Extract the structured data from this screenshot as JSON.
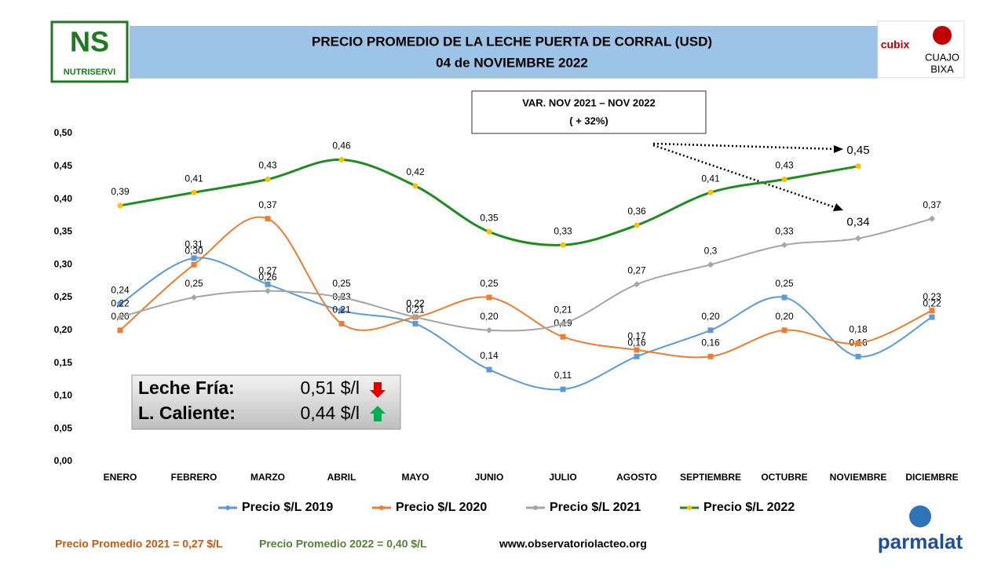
{
  "chart_data": {
    "type": "line",
    "title": "PRECIO PROMEDIO DE LA LECHE PUERTA DE CORRAL (USD)",
    "subtitle": "04 de NOVIEMBRE 2022",
    "categories": [
      "ENERO",
      "FEBRERO",
      "MARZO",
      "ABRIL",
      "MAYO",
      "JUNIO",
      "JULIO",
      "AGOSTO",
      "SEPTIEMBRE",
      "OCTUBRE",
      "NOVIEMBRE",
      "DICIEMBRE"
    ],
    "series": [
      {
        "name": "Precio $/L 2019",
        "color": "#5b9bd5",
        "values": [
          0.24,
          0.31,
          0.27,
          0.23,
          0.21,
          0.14,
          0.11,
          0.16,
          0.2,
          0.25,
          0.16,
          0.22
        ],
        "value_labels": [
          "0,24",
          "0,31",
          "0,27",
          "0,23",
          "0,21",
          "0,14",
          "0,11",
          "0,16",
          "0,20",
          "0,25",
          "0,16",
          "0,22"
        ]
      },
      {
        "name": "Precio $/L 2020",
        "color": "#ed7d31",
        "values": [
          0.2,
          0.3,
          0.37,
          0.21,
          0.22,
          0.25,
          0.19,
          0.17,
          0.16,
          0.2,
          0.18,
          0.23
        ],
        "value_labels": [
          "0,20",
          "0,30",
          "0,37",
          "0,21",
          "0,22",
          "0,25",
          "0,19",
          "0,17",
          "0,16",
          "0,20",
          "0,18",
          "0,23"
        ]
      },
      {
        "name": "Precio $/L 2021",
        "color": "#a5a5a5",
        "values": [
          0.22,
          0.25,
          0.26,
          0.25,
          0.22,
          0.2,
          0.21,
          0.27,
          0.3,
          0.33,
          0.34,
          0.37
        ],
        "value_labels": [
          "0,22",
          "0,25",
          "0,26",
          "0,25",
          "0,22",
          "0,20",
          "0,21",
          "0,27",
          "0,3",
          "0,33",
          "0,34",
          "0,37"
        ]
      },
      {
        "name": "Precio $/L 2022",
        "color": "#1e8c1e",
        "marker_color": "#ffc000",
        "values": [
          0.39,
          0.41,
          0.43,
          0.46,
          0.42,
          0.35,
          0.33,
          0.36,
          0.41,
          0.43,
          0.45,
          null
        ],
        "value_labels": [
          "0,39",
          "0,41",
          "0,43",
          "0,46",
          "0,42",
          "0,35",
          "0,33",
          "0,36",
          "0,41",
          "0,43",
          "0,45",
          null
        ]
      }
    ],
    "ylim": [
      0,
      0.5
    ],
    "yticks": [
      {
        "value": 0,
        "label": "0,00"
      },
      {
        "value": 0.05,
        "label": "0,05"
      },
      {
        "value": 0.1,
        "label": "0,10"
      },
      {
        "value": 0.15,
        "label": "0,15"
      },
      {
        "value": 0.2,
        "label": "0,20"
      },
      {
        "value": 0.25,
        "label": "0,25"
      },
      {
        "value": 0.3,
        "label": "0,30"
      },
      {
        "value": 0.35,
        "label": "0,35"
      },
      {
        "value": 0.4,
        "label": "0,40"
      },
      {
        "value": 0.45,
        "label": "0,45"
      },
      {
        "value": 0.5,
        "label": "0,50"
      }
    ],
    "legend": "bottom",
    "variation_box": [
      "VAR. NOV 2021 – NOV 2022",
      "( + 32%)"
    ],
    "info_box": [
      [
        "Leche Fría:",
        "0,51 $/l"
      ],
      [
        "L. Caliente:",
        "0,44 $/l"
      ]
    ],
    "footer": [
      "Precio Promedio 2021 = 0,27 $/L",
      "Precio Promedio 2022 = 0,40 $/L",
      "www.observatoriolacteo.org"
    ]
  },
  "logos": {
    "left": [
      "NS",
      "NUTRISERVI"
    ],
    "right_top": [
      "cubix",
      "CUAJO",
      "BIXA"
    ],
    "right_bottom": "parmalat"
  }
}
